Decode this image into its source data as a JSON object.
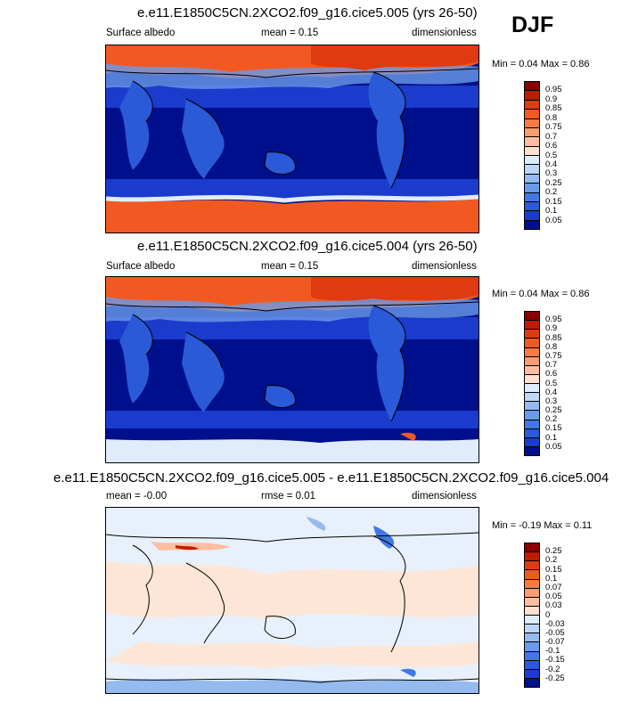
{
  "season": "DJF",
  "panels": [
    {
      "title": "e.e11.E1850C5CN.2XCO2.f09_g16.cice5.005 (yrs 26-50)",
      "left": "Surface albedo",
      "center": "mean =   0.15",
      "right": "dimensionless",
      "minmax": "Min =   0.04 Max =   0.86",
      "legend": {
        "labels": [
          "0.95",
          "0.9",
          "0.85",
          "0.8",
          "0.75",
          "0.7",
          "0.6",
          "0.5",
          "0.4",
          "0.3",
          "0.25",
          "0.2",
          "0.15",
          "0.1",
          "0.05"
        ],
        "colors": [
          "#8b0000",
          "#c21a00",
          "#e03a10",
          "#f05a22",
          "#f77a44",
          "#f99c70",
          "#fbbea0",
          "#fde0d0",
          "#e0ecfb",
          "#bed6f7",
          "#94baf0",
          "#6a9aea",
          "#4278e4",
          "#2a5ad8",
          "#1a3bcc",
          "#000f8c"
        ]
      }
    },
    {
      "title": "e.e11.E1850C5CN.2XCO2.f09_g16.cice5.004 (yrs 26-50)",
      "left": "Surface albedo",
      "center": "mean =   0.15",
      "right": "dimensionless",
      "minmax": "Min =   0.04 Max =   0.86",
      "legend": {
        "labels": [
          "0.95",
          "0.9",
          "0.85",
          "0.8",
          "0.75",
          "0.7",
          "0.6",
          "0.5",
          "0.4",
          "0.3",
          "0.25",
          "0.2",
          "0.15",
          "0.1",
          "0.05"
        ],
        "colors": [
          "#8b0000",
          "#c21a00",
          "#e03a10",
          "#f05a22",
          "#f77a44",
          "#f99c70",
          "#fbbea0",
          "#fde0d0",
          "#e0ecfb",
          "#bed6f7",
          "#94baf0",
          "#6a9aea",
          "#4278e4",
          "#2a5ad8",
          "#1a3bcc",
          "#000f8c"
        ]
      }
    },
    {
      "title": "e.e11.E1850C5CN.2XCO2.f09_g16.cice5.005 - e.e11.E1850C5CN.2XCO2.f09_g16.cice5.004",
      "left": "mean =  -0.00",
      "center": "rmse =   0.01",
      "right": "dimensionless",
      "minmax": "Min =  -0.19 Max =   0.11",
      "legend": {
        "labels": [
          "0.25",
          "0.2",
          "0.15",
          "0.1",
          "0.07",
          "0.05",
          "0.03",
          "0",
          "-0.03",
          "-0.05",
          "-0.07",
          "-0.1",
          "-0.15",
          "-0.2",
          "-0.25"
        ],
        "colors": [
          "#8b0000",
          "#c21a00",
          "#e03a10",
          "#f05a22",
          "#f77a44",
          "#f99c70",
          "#fbbea0",
          "#fde0d0",
          "#e0ecfb",
          "#bed6f7",
          "#94baf0",
          "#6a9aea",
          "#4278e4",
          "#2a5ad8",
          "#1a3bcc",
          "#000f8c"
        ]
      }
    }
  ]
}
